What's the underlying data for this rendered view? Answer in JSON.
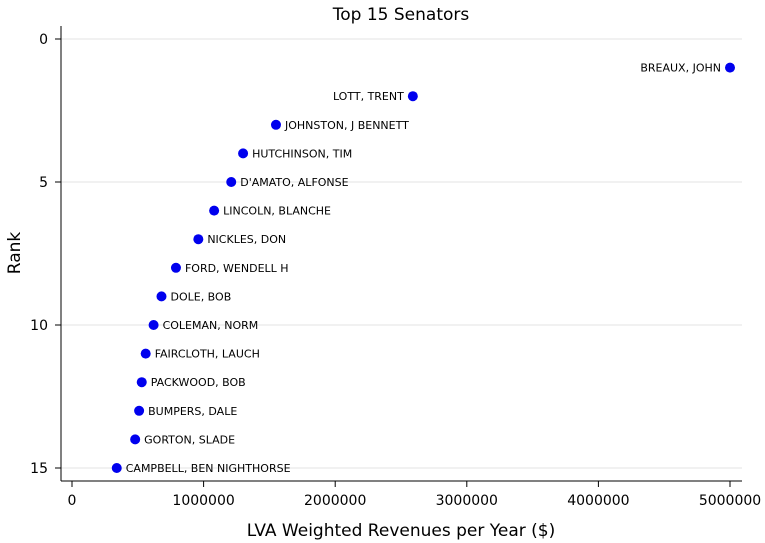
{
  "chart_data": {
    "type": "scatter",
    "title": "Top 15 Senators",
    "xlabel": "LVA Weighted Revenues per Year ($)",
    "ylabel": "Rank",
    "xlim": [
      -50000,
      5080000
    ],
    "ylim": [
      0,
      15
    ],
    "y_reversed": true,
    "x_ticks": [
      0,
      1000000,
      2000000,
      3000000,
      4000000,
      5000000
    ],
    "x_tick_labels": [
      "0",
      "1000000",
      "2000000",
      "3000000",
      "4000000",
      "5000000"
    ],
    "y_ticks": [
      0,
      5,
      10,
      15
    ],
    "y_tick_labels": [
      "0",
      "5",
      "10",
      "15"
    ],
    "grid": "horizontal",
    "marker_color": "#0000ee",
    "points": [
      {
        "label": "BREAUX, JOHN",
        "x": 5000000,
        "y": 1,
        "label_side": "left"
      },
      {
        "label": "LOTT, TRENT",
        "x": 2590000,
        "y": 2,
        "label_side": "left"
      },
      {
        "label": "JOHNSTON, J BENNETT",
        "x": 1550000,
        "y": 3,
        "label_side": "right"
      },
      {
        "label": "HUTCHINSON, TIM",
        "x": 1300000,
        "y": 4,
        "label_side": "right"
      },
      {
        "label": "D'AMATO, ALFONSE",
        "x": 1210000,
        "y": 5,
        "label_side": "right"
      },
      {
        "label": "LINCOLN, BLANCHE",
        "x": 1080000,
        "y": 6,
        "label_side": "right"
      },
      {
        "label": "NICKLES, DON",
        "x": 960000,
        "y": 7,
        "label_side": "right"
      },
      {
        "label": "FORD, WENDELL H",
        "x": 790000,
        "y": 8,
        "label_side": "right"
      },
      {
        "label": "DOLE, BOB",
        "x": 680000,
        "y": 9,
        "label_side": "right"
      },
      {
        "label": "COLEMAN, NORM",
        "x": 620000,
        "y": 10,
        "label_side": "right"
      },
      {
        "label": "FAIRCLOTH, LAUCH",
        "x": 560000,
        "y": 11,
        "label_side": "right"
      },
      {
        "label": "PACKWOOD, BOB",
        "x": 530000,
        "y": 12,
        "label_side": "right"
      },
      {
        "label": "BUMPERS, DALE",
        "x": 510000,
        "y": 13,
        "label_side": "right"
      },
      {
        "label": "GORTON, SLADE",
        "x": 480000,
        "y": 14,
        "label_side": "right"
      },
      {
        "label": "CAMPBELL, BEN NIGHTHORSE",
        "x": 340000,
        "y": 15,
        "label_side": "right"
      }
    ]
  }
}
